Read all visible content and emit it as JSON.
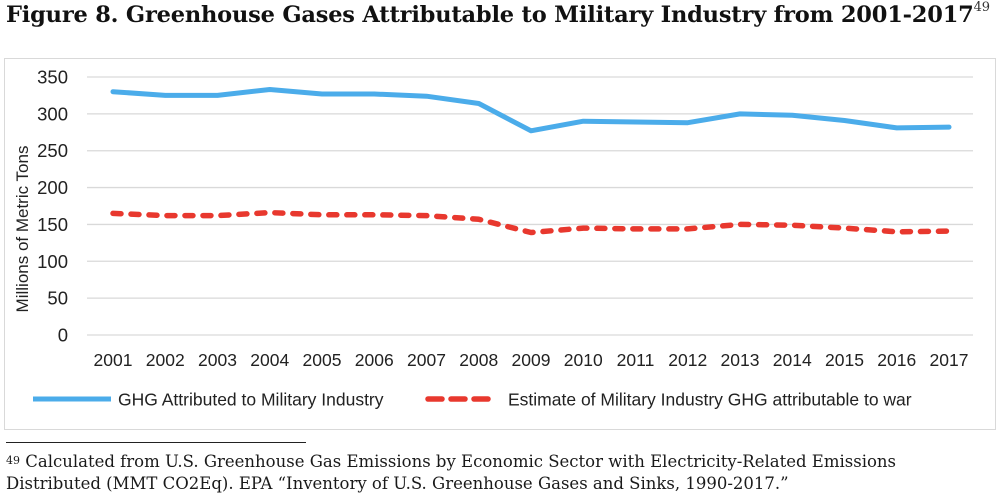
{
  "figure": {
    "title": "Figure 8. Greenhouse Gases Attributable to Military Industry from 2001-2017",
    "title_footnote_ref": "49"
  },
  "footnote": {
    "number": "49",
    "line1": "Calculated from U.S. Greenhouse Gas Emissions by Economic Sector with Electricity-Related Emissions",
    "line2": "Distributed (MMT CO2Eq). EPA “Inventory of U.S. Greenhouse Gases and Sinks, 1990-2017.”"
  },
  "chart_data": {
    "type": "line",
    "title": "Greenhouse Gases Attributable to Military Industry from 2001-2017",
    "xlabel": "",
    "ylabel": "Millions of Metric Tons",
    "ylim": [
      0,
      350
    ],
    "yticks": [
      0,
      50,
      100,
      150,
      200,
      250,
      300,
      350
    ],
    "grid": true,
    "legend_position": "bottom",
    "categories": [
      "2001",
      "2002",
      "2003",
      "2004",
      "2005",
      "2006",
      "2007",
      "2008",
      "2009",
      "2010",
      "2011",
      "2012",
      "2013",
      "2014",
      "2015",
      "2016",
      "2017"
    ],
    "series": [
      {
        "name": "GHG Attributed to Military Industry",
        "color": "#4BACEA",
        "style": "solid",
        "values": [
          330,
          325,
          325,
          333,
          327,
          327,
          324,
          314,
          277,
          290,
          289,
          288,
          300,
          298,
          291,
          281,
          282
        ]
      },
      {
        "name": "Estimate of Military Industry GHG attributable to war",
        "color": "#E8382E",
        "style": "dashed",
        "values": [
          165,
          162,
          162,
          166,
          163,
          163,
          162,
          157,
          139,
          145,
          144,
          144,
          150,
          149,
          145,
          140,
          141
        ]
      }
    ],
    "gridline_color": "#d9d9d9"
  }
}
